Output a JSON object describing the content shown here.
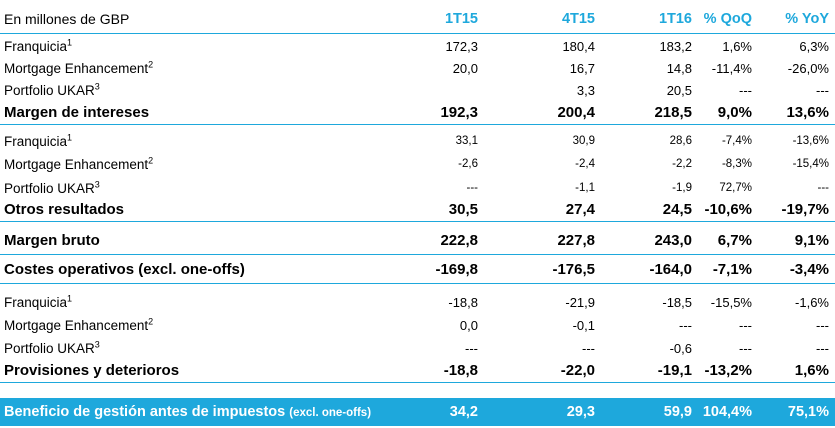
{
  "header": {
    "unit_label": "En millones de GBP",
    "columns": [
      "1T15",
      "4T15",
      "1T16",
      "% QoQ",
      "% YoY"
    ]
  },
  "rows": [
    {
      "label": "Franquicia",
      "sup": "1",
      "values": [
        "172,3",
        "180,4",
        "183,2",
        "1,6%",
        "6,3%"
      ]
    },
    {
      "label": "Mortgage Enhancement",
      "sup": "2",
      "values": [
        "20,0",
        "16,7",
        "14,8",
        "-11,4%",
        "-26,0%"
      ]
    },
    {
      "label": "Portfolio UKAR",
      "sup": "3",
      "values": [
        "",
        "3,3",
        "20,5",
        "---",
        "---"
      ]
    },
    {
      "label": "Margen de intereses",
      "values": [
        "192,3",
        "200,4",
        "218,5",
        "9,0%",
        "13,6%"
      ]
    },
    {
      "label": "Franquicia",
      "sup": "1",
      "values": [
        "33,1",
        "30,9",
        "28,6",
        "-7,4%",
        "-13,6%"
      ]
    },
    {
      "label": "Mortgage Enhancement",
      "sup": "2",
      "values": [
        "-2,6",
        "-2,4",
        "-2,2",
        "-8,3%",
        "-15,4%"
      ]
    },
    {
      "label": "Portfolio UKAR",
      "sup": "3",
      "values": [
        "---",
        "-1,1",
        "-1,9",
        "72,7%",
        "---"
      ]
    },
    {
      "label": "Otros resultados",
      "values": [
        "30,5",
        "27,4",
        "24,5",
        "-10,6%",
        "-19,7%"
      ]
    },
    {
      "label": "Margen bruto",
      "values": [
        "222,8",
        "227,8",
        "243,0",
        "6,7%",
        "9,1%"
      ]
    },
    {
      "label": "Costes operativos (excl. one-offs)",
      "values": [
        "-169,8",
        "-176,5",
        "-164,0",
        "-7,1%",
        "-3,4%"
      ]
    },
    {
      "label": "Franquicia",
      "sup": "1",
      "values": [
        "-18,8",
        "-21,9",
        "-18,5",
        "-15,5%",
        "-1,6%"
      ]
    },
    {
      "label": "Mortgage Enhancement",
      "sup": "2",
      "values": [
        "0,0",
        "-0,1",
        "---",
        "---",
        "---"
      ]
    },
    {
      "label": "Portfolio UKAR",
      "sup": "3",
      "values": [
        "---",
        "---",
        "-0,6",
        "---",
        "---"
      ]
    },
    {
      "label": "Provisiones y deterioros",
      "values": [
        "-18,8",
        "-22,0",
        "-19,1",
        "-13,2%",
        "1,6%"
      ]
    }
  ],
  "footer": {
    "label": "Beneficio de gestión antes de impuestos",
    "note": "(excl. one-offs)",
    "values": [
      "34,2",
      "29,3",
      "59,9",
      "104,4%",
      "75,1%"
    ]
  }
}
